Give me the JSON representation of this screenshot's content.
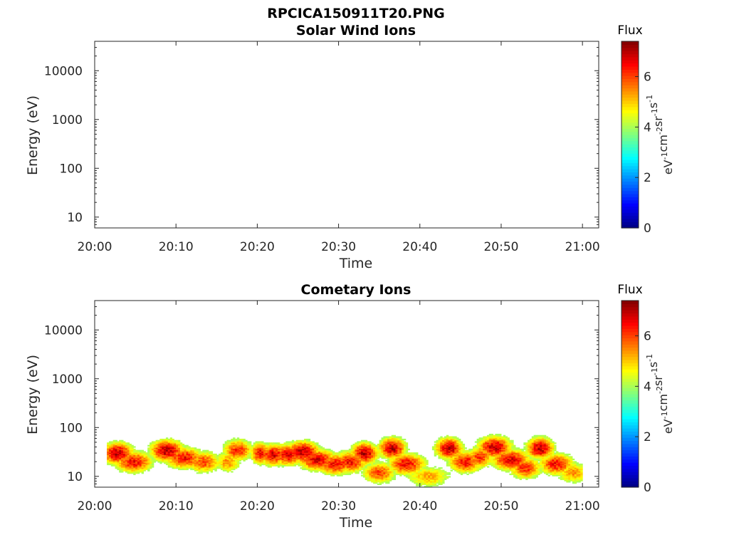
{
  "figure": {
    "file_title": "RPCICA150911T20.PNG"
  },
  "colorbar": {
    "label": "Flux",
    "unit_parts": [
      "eV",
      "-1",
      "cm",
      "-2",
      "sr",
      "-1",
      "s",
      "-1"
    ],
    "ticks": [
      "0",
      "2",
      "4",
      "6"
    ],
    "range": [
      0,
      7.4
    ],
    "colormap": "jet"
  },
  "chart_data": [
    {
      "type": "heatmap",
      "title": "Solar Wind Ions",
      "xlabel": "Time",
      "ylabel": "Energy (eV)",
      "x_ticks": [
        "20:00",
        "20:10",
        "20:20",
        "20:30",
        "20:40",
        "20:50",
        "21:00"
      ],
      "y_ticks": [
        "10",
        "100",
        "1000",
        "10000"
      ],
      "y_scale": "log",
      "ylim": [
        6,
        40000
      ],
      "xlim": [
        "20:00",
        "21:02"
      ],
      "grid": false,
      "blobs": []
    },
    {
      "type": "heatmap",
      "title": "Cometary Ions",
      "xlabel": "Time",
      "ylabel": "Energy (eV)",
      "x_ticks": [
        "20:00",
        "20:10",
        "20:20",
        "20:30",
        "20:40",
        "20:50",
        "21:00"
      ],
      "y_ticks": [
        "10",
        "100",
        "1000",
        "10000"
      ],
      "y_scale": "log",
      "ylim": [
        6,
        40000
      ],
      "xlim": [
        "20:00",
        "21:02"
      ],
      "grid": false,
      "data_extent_minutes": [
        1.5,
        60
      ],
      "blobs": [
        {
          "t": 2.8,
          "e": 30,
          "dt": 1.5,
          "w": 0.9
        },
        {
          "t": 4.8,
          "e": 20,
          "dt": 1.8,
          "w": 0.8
        },
        {
          "t": 8.9,
          "e": 34,
          "dt": 1.6,
          "w": 0.9
        },
        {
          "t": 11.0,
          "e": 24,
          "dt": 1.8,
          "w": 0.8
        },
        {
          "t": 13.4,
          "e": 20,
          "dt": 1.6,
          "w": 0.7
        },
        {
          "t": 16.4,
          "e": 20,
          "dt": 1.2,
          "w": 0.6
        },
        {
          "t": 17.6,
          "e": 35,
          "dt": 1.4,
          "w": 0.75
        },
        {
          "t": 20.4,
          "e": 30,
          "dt": 1.0,
          "w": 0.8
        },
        {
          "t": 22.0,
          "e": 28,
          "dt": 1.4,
          "w": 0.85
        },
        {
          "t": 23.8,
          "e": 28,
          "dt": 1.4,
          "w": 0.85
        },
        {
          "t": 25.6,
          "e": 32,
          "dt": 1.6,
          "w": 0.9
        },
        {
          "t": 27.4,
          "e": 22,
          "dt": 1.8,
          "w": 0.85
        },
        {
          "t": 29.6,
          "e": 18,
          "dt": 1.8,
          "w": 0.8
        },
        {
          "t": 31.4,
          "e": 20,
          "dt": 1.6,
          "w": 0.8
        },
        {
          "t": 33.2,
          "e": 30,
          "dt": 1.3,
          "w": 0.9
        },
        {
          "t": 35.0,
          "e": 12,
          "dt": 1.6,
          "w": 0.7
        },
        {
          "t": 36.6,
          "e": 38,
          "dt": 1.3,
          "w": 0.9
        },
        {
          "t": 38.4,
          "e": 18,
          "dt": 1.8,
          "w": 0.8
        },
        {
          "t": 41.0,
          "e": 10,
          "dt": 2.2,
          "w": 0.55
        },
        {
          "t": 43.6,
          "e": 38,
          "dt": 1.3,
          "w": 0.9
        },
        {
          "t": 45.6,
          "e": 20,
          "dt": 1.6,
          "w": 0.8
        },
        {
          "t": 47.4,
          "e": 25,
          "dt": 1.2,
          "w": 0.75
        },
        {
          "t": 49.2,
          "e": 40,
          "dt": 1.6,
          "w": 0.9
        },
        {
          "t": 51.2,
          "e": 22,
          "dt": 1.8,
          "w": 0.85
        },
        {
          "t": 53.0,
          "e": 15,
          "dt": 1.5,
          "w": 0.75
        },
        {
          "t": 54.8,
          "e": 38,
          "dt": 1.3,
          "w": 0.9
        },
        {
          "t": 56.8,
          "e": 18,
          "dt": 1.6,
          "w": 0.8
        },
        {
          "t": 58.8,
          "e": 12,
          "dt": 1.5,
          "w": 0.6
        }
      ]
    }
  ]
}
